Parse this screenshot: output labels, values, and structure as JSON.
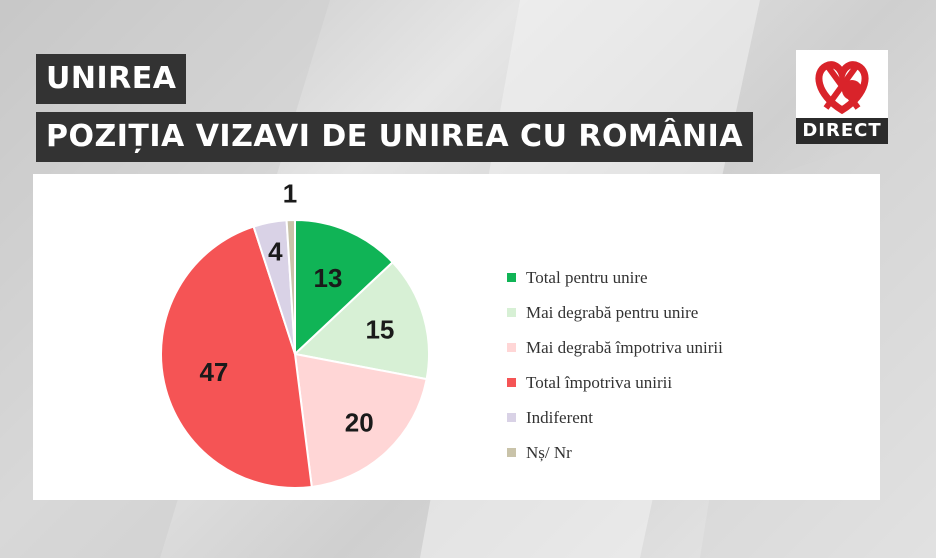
{
  "header": {
    "title": "UNIREA",
    "subtitle": "POZIȚIA VIZAVI DE UNIREA CU ROMÂNIA"
  },
  "logo": {
    "label": "DIRECT",
    "colors": {
      "red": "#d9232a",
      "white": "#ffffff"
    }
  },
  "chart_data": {
    "type": "pie",
    "categories": [
      "Total pentru unire",
      "Mai degrabă pentru unire",
      "Mai degrabă împotriva unirii",
      "Total împotriva unirii",
      "Indiferent",
      "Nș/ Nr"
    ],
    "values": [
      13,
      15,
      20,
      47,
      4,
      1
    ],
    "colors": [
      "#10b456",
      "#d7f0d5",
      "#ffd6d6",
      "#f55455",
      "#d9d2e6",
      "#c9c3a9"
    ],
    "legend": "right"
  }
}
